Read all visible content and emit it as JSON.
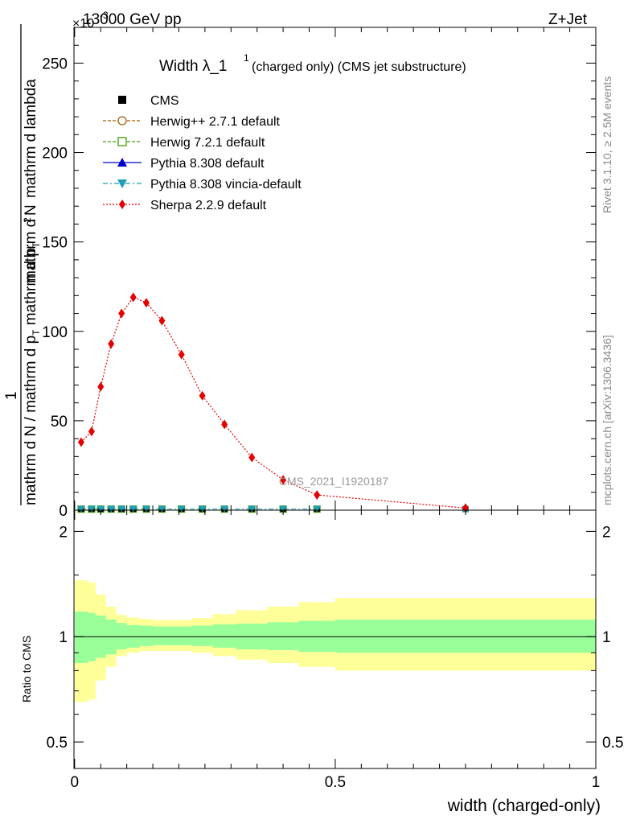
{
  "header": {
    "left": "13000 GeV pp",
    "exponent_label": "×10",
    "exponent_power": "-3",
    "right": "Z+Jet"
  },
  "side_labels": {
    "rivet": "Rivet 3.1.10, ≥ 2.5M events",
    "mcplots": "mcplots.cern.ch [arXiv:1306.3436]"
  },
  "chart_data": [
    {
      "type": "line",
      "title_main": "Width λ_1",
      "title_sup": "1",
      "title_sub": "(charged only) (CMS jet substructure)",
      "ylabel_parts": [
        "1",
        "mathrm d N / mathrm d p",
        "T",
        "mathrm d p",
        "T",
        "mathrm d",
        "2",
        "N",
        "mathrm d lambda"
      ],
      "ylim": [
        0,
        270
      ],
      "y_ticks": [
        0,
        50,
        100,
        150,
        200,
        250
      ],
      "xlim": [
        -0.0013,
        1.0
      ],
      "watermark": "CMS_2021_I1920187",
      "legend": [
        {
          "name": "CMS",
          "color": "#000000",
          "marker": "square-filled",
          "dash": "none"
        },
        {
          "name": "Herwig++ 2.7.1 default",
          "color": "#a65e00",
          "marker": "circle-open",
          "dash": "4,2"
        },
        {
          "name": "Herwig 7.2.1 default",
          "color": "#409e00",
          "marker": "square-open",
          "dash": "4,2"
        },
        {
          "name": "Pythia 8.308 default",
          "color": "#0000cc",
          "marker": "triangle-up",
          "dash": "none"
        },
        {
          "name": "Pythia 8.308 vincia-default",
          "color": "#1f9fb8",
          "marker": "triangle-down",
          "dash": "6,3,2,3"
        },
        {
          "name": "Sherpa 2.2.9 default",
          "color": "#e30000",
          "marker": "diamond",
          "dash": "2,2"
        }
      ],
      "bins": [
        0.0,
        0.025,
        0.04,
        0.06,
        0.08,
        0.1,
        0.125,
        0.15,
        0.185,
        0.225,
        0.265,
        0.31,
        0.37,
        0.43,
        0.5,
        1.0
      ],
      "series": [
        {
          "name": "Sherpa 2.2.9 default",
          "x": [
            0.0125,
            0.0325,
            0.05,
            0.07,
            0.09,
            0.1125,
            0.1375,
            0.1675,
            0.205,
            0.245,
            0.2875,
            0.34,
            0.4,
            0.465,
            0.75
          ],
          "y": [
            38,
            44,
            69,
            93,
            110,
            119,
            116,
            106,
            87,
            64,
            48,
            29.5,
            17,
            8.5,
            1.2
          ]
        },
        {
          "name": "CMS",
          "x": [
            0.0125,
            0.0325,
            0.05,
            0.07,
            0.09,
            0.1125,
            0.1375,
            0.1675,
            0.205,
            0.245,
            0.2875,
            0.34,
            0.4,
            0.465,
            0.75
          ],
          "y": [
            0.1,
            0.1,
            0.1,
            0.1,
            0.1,
            0.1,
            0.1,
            0.1,
            0.1,
            0.1,
            0.1,
            0.1,
            0.1,
            0.1,
            0.1
          ]
        }
      ]
    },
    {
      "type": "area",
      "ylabel": "Ratio to CMS",
      "xlabel": "width (charged-only)",
      "ylim": [
        0.42,
        2.3
      ],
      "log_scale": true,
      "y_ticks": [
        0.5,
        1,
        2
      ],
      "x_ticks": [
        0,
        0.5,
        1
      ],
      "bands": {
        "bins": [
          0.0,
          0.025,
          0.04,
          0.06,
          0.08,
          0.1,
          0.125,
          0.15,
          0.185,
          0.225,
          0.265,
          0.31,
          0.37,
          0.43,
          0.5,
          1.0
        ],
        "green_lo": [
          0.84,
          0.85,
          0.87,
          0.89,
          0.92,
          0.93,
          0.94,
          0.945,
          0.945,
          0.94,
          0.93,
          0.92,
          0.915,
          0.905,
          0.9
        ],
        "green_hi": [
          1.18,
          1.17,
          1.15,
          1.12,
          1.095,
          1.08,
          1.075,
          1.07,
          1.07,
          1.075,
          1.085,
          1.09,
          1.1,
          1.11,
          1.12
        ],
        "yellow_lo": [
          0.65,
          0.66,
          0.75,
          0.82,
          0.88,
          0.9,
          0.91,
          0.91,
          0.91,
          0.9,
          0.88,
          0.86,
          0.84,
          0.82,
          0.8
        ],
        "yellow_hi": [
          1.45,
          1.43,
          1.32,
          1.22,
          1.155,
          1.135,
          1.125,
          1.115,
          1.115,
          1.13,
          1.16,
          1.19,
          1.22,
          1.255,
          1.29
        ]
      },
      "colors": {
        "green": "#99ff99",
        "yellow": "#ffff99"
      }
    }
  ]
}
